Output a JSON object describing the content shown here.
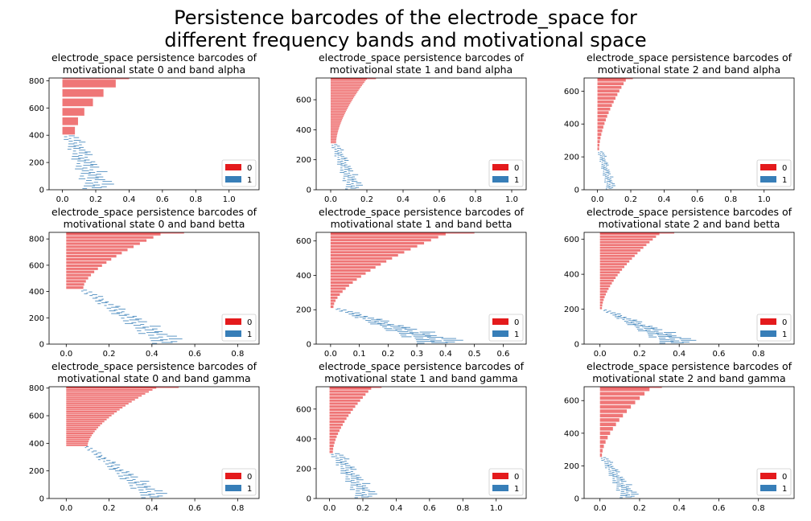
{
  "suptitle": [
    "Persistence barcodes of the electrode_space for",
    "different frequency bands and motivational space"
  ],
  "colors": {
    "dim0": "#e41a1c",
    "dim1": "#377eb8",
    "bar_alpha": 0.6
  },
  "chart_data": [
    {
      "type": "barcode",
      "title": [
        "electrode_space persistence barcodes of",
        "motivational state 0 and band alpha"
      ],
      "xlim": [
        -0.08,
        1.18
      ],
      "ylim": [
        0,
        820
      ],
      "xticks": [
        0.0,
        0.2,
        0.4,
        0.6,
        0.8,
        1.0
      ],
      "yticks": [
        0,
        200,
        400,
        600,
        800
      ],
      "legend": [
        "0",
        "1"
      ],
      "legend_loc": "lower-right",
      "dim0": {
        "y_start": 405,
        "y_end": 820,
        "len_start": 0.075,
        "len_end": 0.32,
        "n_bars": 6
      },
      "dim1": {
        "y_start": 8,
        "y_end": 395,
        "x_lo_start": 0.12,
        "x_lo_end": 0.0,
        "x_hi_start": 0.35,
        "x_hi_end": 0.12
      }
    },
    {
      "type": "barcode",
      "title": [
        "electrode_space persistence barcodes of",
        "motivational state 1 and band alpha"
      ],
      "xlim": [
        -0.08,
        1.08
      ],
      "ylim": [
        0,
        745
      ],
      "xticks": [
        0.0,
        0.2,
        0.4,
        0.6,
        0.8,
        1.0
      ],
      "yticks": [
        0,
        200,
        400,
        600
      ],
      "legend": [
        "0",
        "1"
      ],
      "legend_loc": "lower-right",
      "dim0": {
        "y_start": 310,
        "y_end": 745,
        "len_start": 0.03,
        "len_end": 0.2,
        "n_bars": 40
      },
      "dim1": {
        "y_start": 5,
        "y_end": 300,
        "x_lo_start": 0.08,
        "x_lo_end": 0.0,
        "x_hi_start": 0.2,
        "x_hi_end": 0.06
      }
    },
    {
      "type": "barcode",
      "title": [
        "electrode_space persistence barcodes of",
        "motivational state 2 and band alpha"
      ],
      "xlim": [
        -0.08,
        1.18
      ],
      "ylim": [
        0,
        680
      ],
      "xticks": [
        0.0,
        0.2,
        0.4,
        0.6,
        0.8,
        1.0
      ],
      "yticks": [
        0,
        200,
        400,
        600
      ],
      "legend": [
        "0",
        "1"
      ],
      "legend_loc": "lower-right",
      "dim0": {
        "y_start": 240,
        "y_end": 680,
        "len_start": 0.01,
        "len_end": 0.17,
        "n_bars": 20
      },
      "dim1": {
        "y_start": 5,
        "y_end": 230,
        "x_lo_start": 0.05,
        "x_lo_end": 0.0,
        "x_hi_start": 0.12,
        "x_hi_end": 0.05
      }
    },
    {
      "type": "barcode",
      "title": [
        "electrode_space persistence barcodes of",
        "motivational state 0 and band betta"
      ],
      "xlim": [
        -0.08,
        0.9
      ],
      "ylim": [
        0,
        850
      ],
      "xticks": [
        0.0,
        0.2,
        0.4,
        0.6,
        0.8
      ],
      "yticks": [
        0,
        200,
        400,
        600,
        800
      ],
      "legend": [
        "0",
        "1"
      ],
      "legend_loc": "lower-right",
      "dim0": {
        "y_start": 420,
        "y_end": 850,
        "len_start": 0.08,
        "len_end": 0.44,
        "n_bars": 18
      },
      "dim1": {
        "y_start": 5,
        "y_end": 410,
        "x_lo_start": 0.4,
        "x_lo_end": 0.06,
        "x_hi_start": 0.6,
        "x_hi_end": 0.12
      }
    },
    {
      "type": "barcode",
      "title": [
        "electrode_space persistence barcodes of",
        "motivational state 1 and band betta"
      ],
      "xlim": [
        -0.05,
        0.68
      ],
      "ylim": [
        0,
        650
      ],
      "xticks": [
        0.0,
        0.1,
        0.2,
        0.3,
        0.4,
        0.5,
        0.6
      ],
      "yticks": [
        0,
        200,
        400,
        600
      ],
      "legend": [
        "0",
        "1"
      ],
      "legend_loc": "lower-right",
      "dim0": {
        "y_start": 210,
        "y_end": 650,
        "len_start": 0.01,
        "len_end": 0.4,
        "n_bars": 25
      },
      "dim1": {
        "y_start": 5,
        "y_end": 205,
        "x_lo_start": 0.3,
        "x_lo_end": 0.01,
        "x_hi_start": 0.52,
        "x_hi_end": 0.05
      }
    },
    {
      "type": "barcode",
      "title": [
        "electrode_space persistence barcodes of",
        "motivational state 2 and band betta"
      ],
      "xlim": [
        -0.08,
        0.98
      ],
      "ylim": [
        0,
        640
      ],
      "xticks": [
        0.0,
        0.2,
        0.4,
        0.6,
        0.8
      ],
      "yticks": [
        0,
        200,
        400,
        600
      ],
      "legend": [
        "0",
        "1"
      ],
      "legend_loc": "lower-right",
      "dim0": {
        "y_start": 200,
        "y_end": 640,
        "len_start": 0.01,
        "len_end": 0.3,
        "n_bars": 28
      },
      "dim1": {
        "y_start": 5,
        "y_end": 195,
        "x_lo_start": 0.3,
        "x_lo_end": 0.01,
        "x_hi_start": 0.55,
        "x_hi_end": 0.05
      }
    },
    {
      "type": "barcode",
      "title": [
        "electrode_space persistence barcodes of",
        "motivational state 0 and band gamma"
      ],
      "xlim": [
        -0.08,
        0.9
      ],
      "ylim": [
        0,
        810
      ],
      "xticks": [
        0.0,
        0.2,
        0.4,
        0.6,
        0.8
      ],
      "yticks": [
        0,
        200,
        400,
        600,
        800
      ],
      "legend": [
        "0",
        "1"
      ],
      "legend_loc": "lower-right",
      "dim0": {
        "y_start": 380,
        "y_end": 810,
        "len_start": 0.1,
        "len_end": 0.42,
        "n_bars": 30
      },
      "dim1": {
        "y_start": 5,
        "y_end": 375,
        "x_lo_start": 0.35,
        "x_lo_end": 0.08,
        "x_hi_start": 0.52,
        "x_hi_end": 0.12
      }
    },
    {
      "type": "barcode",
      "title": [
        "electrode_space persistence barcodes of",
        "motivational state 1 and band gamma"
      ],
      "xlim": [
        -0.08,
        1.18
      ],
      "ylim": [
        0,
        750
      ],
      "xticks": [
        0.0,
        0.2,
        0.4,
        0.6,
        0.8,
        1.0
      ],
      "yticks": [
        0,
        200,
        400,
        600
      ],
      "legend": [
        "0",
        "1"
      ],
      "legend_loc": "lower-right",
      "dim0": {
        "y_start": 305,
        "y_end": 750,
        "len_start": 0.02,
        "len_end": 0.25,
        "n_bars": 22
      },
      "dim1": {
        "y_start": 5,
        "y_end": 300,
        "x_lo_start": 0.15,
        "x_lo_end": 0.0,
        "x_hi_start": 0.32,
        "x_hi_end": 0.1
      }
    },
    {
      "type": "barcode",
      "title": [
        "electrode_space persistence barcodes of",
        "motivational state 2 and band gamma"
      ],
      "xlim": [
        -0.08,
        0.98
      ],
      "ylim": [
        0,
        685
      ],
      "xticks": [
        0.0,
        0.2,
        0.4,
        0.6,
        0.8
      ],
      "yticks": [
        0,
        200,
        400,
        600
      ],
      "legend": [
        "0",
        "1"
      ],
      "legend_loc": "lower-right",
      "dim0": {
        "y_start": 255,
        "y_end": 685,
        "len_start": 0.01,
        "len_end": 0.25,
        "n_bars": 16
      },
      "dim1": {
        "y_start": 5,
        "y_end": 250,
        "x_lo_start": 0.1,
        "x_lo_end": 0.0,
        "x_hi_start": 0.22,
        "x_hi_end": 0.05
      }
    }
  ]
}
